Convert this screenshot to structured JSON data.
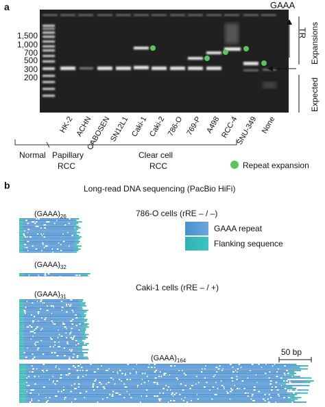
{
  "panel_a": {
    "label": "a",
    "top_label": "GAAA",
    "ladder": [
      "1,500",
      "1,000",
      "700",
      "500",
      "300",
      "200"
    ],
    "lanes": [
      "HK-2",
      "ACHN",
      "CABOSEN",
      "SN12L1",
      "Caki-1",
      "Caki-2",
      "786-O",
      "769-P",
      "A498",
      "RCC-4",
      "SNU-349",
      "None"
    ],
    "right_label_tr": "TR",
    "right_label_expansions": "Expansions",
    "right_label_expected": "Expected",
    "groups": {
      "normal": "Normal",
      "papillary": "Papillary RCC",
      "papillary_l1": "Papillary",
      "papillary_l2": "RCC",
      "clear_l1": "Clear cell",
      "clear_l2": "RCC"
    },
    "legend": "Repeat expansion",
    "colors": {
      "green": "#5cc45c",
      "gel": "#202020"
    }
  },
  "panel_b": {
    "label": "b",
    "title": "Long-read DNA sequencing (PacBio HiFi)",
    "cell_786o": "786-O cells (rRE – / –)",
    "cell_caki1": "Caki-1 cells (rRE – / +)",
    "legend_repeat": "GAAA repeat",
    "legend_flank": "Flanking sequence",
    "repeat_base": "(GAAA)",
    "allele_a_sub": "26",
    "allele_b_sub": "32",
    "allele_c_sub": "31",
    "allele_d_sub": "164",
    "scale": "50 bp",
    "colors": {
      "repeat": "#4a8fd0",
      "flank": "#2fb3b0"
    }
  }
}
